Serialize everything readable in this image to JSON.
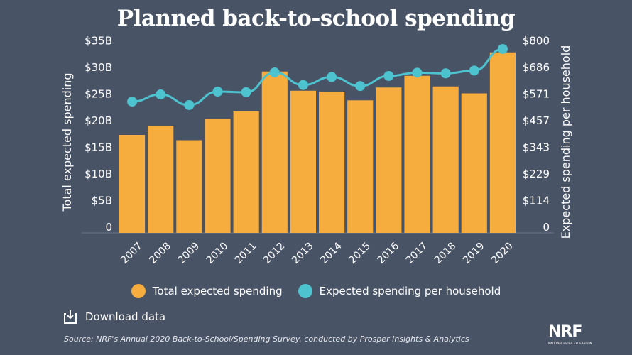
{
  "title": "Planned back-to-school spending",
  "chart_data": {
    "type": "bar+line",
    "title": "Planned back-to-school spending",
    "categories": [
      "2007",
      "2008",
      "2009",
      "2010",
      "2011",
      "2012",
      "2013",
      "2014",
      "2015",
      "2016",
      "2017",
      "2018",
      "2019",
      "2020"
    ],
    "series": [
      {
        "name": "Total expected spending",
        "type": "bar",
        "axis": "left",
        "color": "#f7ad3d",
        "values": [
          18.4,
          20.1,
          17.4,
          21.4,
          22.8,
          30.3,
          26.7,
          26.5,
          24.9,
          27.3,
          29.5,
          27.5,
          26.2,
          33.9
        ]
      },
      {
        "name": "Expected spending per household",
        "type": "line",
        "axis": "right",
        "color": "#4dc3cf",
        "values": [
          563.49,
          594.24,
          548.72,
          606.4,
          603.63,
          688.62,
          634.78,
          669.28,
          630.36,
          673.57,
          687.72,
          684.79,
          696.7,
          789.49
        ]
      }
    ],
    "ylabel_left": "Total expected spending",
    "ylabel_right": "Expected spending per household",
    "ylim_left": [
      0,
      35
    ],
    "ylim_right": [
      0,
      800
    ],
    "yticks_left": [
      "0",
      "$5B",
      "$10B",
      "$15B",
      "$20B",
      "$25B",
      "$30B",
      "$35B"
    ],
    "yticks_right": [
      "0",
      "$114",
      "$229",
      "$343",
      "$457",
      "$571",
      "$686",
      "$800"
    ],
    "grid": false,
    "legend": "bottom"
  },
  "download_label": "Download data",
  "source": "Source: NRF's Annual 2020 Back-to-School/Spending Survey, conducted by Prosper Insights & Analytics",
  "logo": {
    "text": "NRF",
    "subtext": "NATIONAL RETAIL FEDERATION"
  }
}
